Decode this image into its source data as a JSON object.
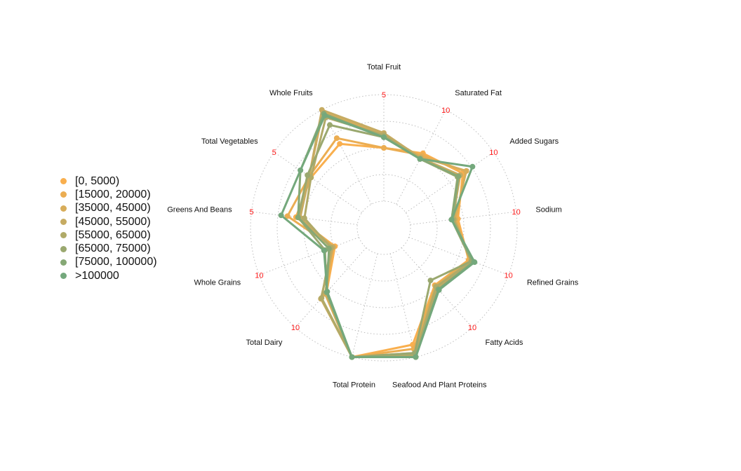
{
  "chart_data": {
    "type": "radar",
    "title": "",
    "categories": [
      "Total Fruit",
      "Saturated Fat",
      "Added Sugars",
      "Sodium",
      "Refined Grains",
      "Fatty Acids",
      "Seafood And Plant Proteins",
      "Total Protein",
      "Total Dairy",
      "Whole Grains",
      "Greens And Beans",
      "Total Vegetables",
      "Whole Fruits"
    ],
    "axis_max": [
      5,
      10,
      10,
      10,
      10,
      10,
      5,
      5,
      10,
      10,
      5,
      5,
      5
    ],
    "grid": true,
    "legend_position": "left",
    "series": [
      {
        "name": "[0, 5000)",
        "color": "#F9AF4E",
        "values": [
          2.5,
          5.4,
          6.5,
          4.5,
          6.0,
          4.7,
          4.4,
          5,
          5.6,
          2.4,
          2.9,
          2.9,
          3.2
        ]
      },
      {
        "name": "[15000, 20000)",
        "color": "#EBAD52",
        "values": [
          2.5,
          5.2,
          6.8,
          4.3,
          6.1,
          4.8,
          4.6,
          5,
          5.7,
          2.6,
          3.3,
          3.0,
          3.5
        ]
      },
      {
        "name": "[35000, 45000)",
        "color": "#D8AD5A",
        "values": [
          3.1,
          5.0,
          6.9,
          4.2,
          6.2,
          4.8,
          4.8,
          5,
          5.8,
          2.7,
          2.8,
          3.0,
          4.9
        ]
      },
      {
        "name": "[45000, 55000)",
        "color": "#C6AB62",
        "values": [
          3.2,
          4.9,
          6.2,
          4.0,
          6.4,
          5.0,
          5.0,
          5,
          6.4,
          2.6,
          2.7,
          3.0,
          5.0
        ]
      },
      {
        "name": "[55000, 65000)",
        "color": "#B0AA68",
        "values": [
          3.1,
          4.8,
          6.0,
          4.1,
          6.3,
          4.9,
          4.9,
          5,
          6.3,
          2.8,
          2.5,
          2.9,
          4.6
        ]
      },
      {
        "name": "[65000, 75000)",
        "color": "#9AA86F",
        "values": [
          3.0,
          4.8,
          5.9,
          3.9,
          6.3,
          4.1,
          4.8,
          5,
          5.6,
          3.4,
          2.8,
          3.1,
          4.2
        ]
      },
      {
        "name": "[75000, 100000)",
        "color": "#86A875",
        "values": [
          3.0,
          4.8,
          6.0,
          3.9,
          6.5,
          5.2,
          5.0,
          5,
          5.6,
          3.0,
          2.8,
          3.5,
          4.8
        ]
      },
      {
        "name": ">100000",
        "color": "#74A87C",
        "values": [
          3.0,
          4.8,
          7.6,
          3.9,
          6.6,
          5.3,
          5.0,
          5,
          5.5,
          3.5,
          3.6,
          3.5,
          4.7
        ]
      }
    ]
  }
}
